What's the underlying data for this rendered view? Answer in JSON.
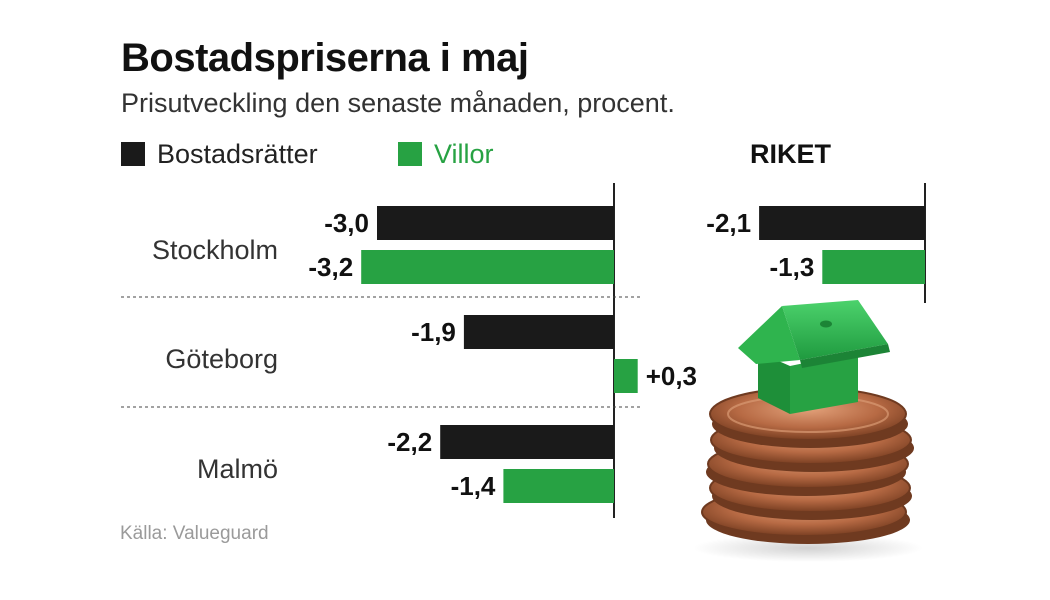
{
  "colors": {
    "bostadsratter": "#1a1a1a",
    "villor": "#27a243",
    "text": "#333333",
    "source": "#9a9a9a"
  },
  "chart_data": {
    "type": "bar",
    "orientation": "horizontal",
    "title": "Bostadspriserna i maj",
    "subtitle": "Prisutveckling den senaste månaden, procent.",
    "legend": [
      "Bostadsrätter",
      "Villor"
    ],
    "legend_position": "top-left",
    "source": "Källa: Valueguard",
    "panels": [
      {
        "title": "",
        "categories": [
          "Stockholm",
          "Göteborg",
          "Malmö"
        ],
        "series": [
          {
            "name": "Bostadsrätter",
            "values": [
              -3.0,
              -1.9,
              -2.2
            ],
            "labels": [
              "-3,0",
              "-1,9",
              "-2,2"
            ]
          },
          {
            "name": "Villor",
            "values": [
              -3.2,
              0.3,
              -1.4
            ],
            "labels": [
              "-3,2",
              "+0,3",
              "-1,4"
            ]
          }
        ]
      },
      {
        "title": "RIKET",
        "categories": [
          ""
        ],
        "series": [
          {
            "name": "Bostadsrätter",
            "values": [
              -2.1
            ],
            "labels": [
              "-2,1"
            ]
          },
          {
            "name": "Villor",
            "values": [
              -1.3
            ],
            "labels": [
              "-1,3"
            ]
          }
        ]
      }
    ]
  }
}
